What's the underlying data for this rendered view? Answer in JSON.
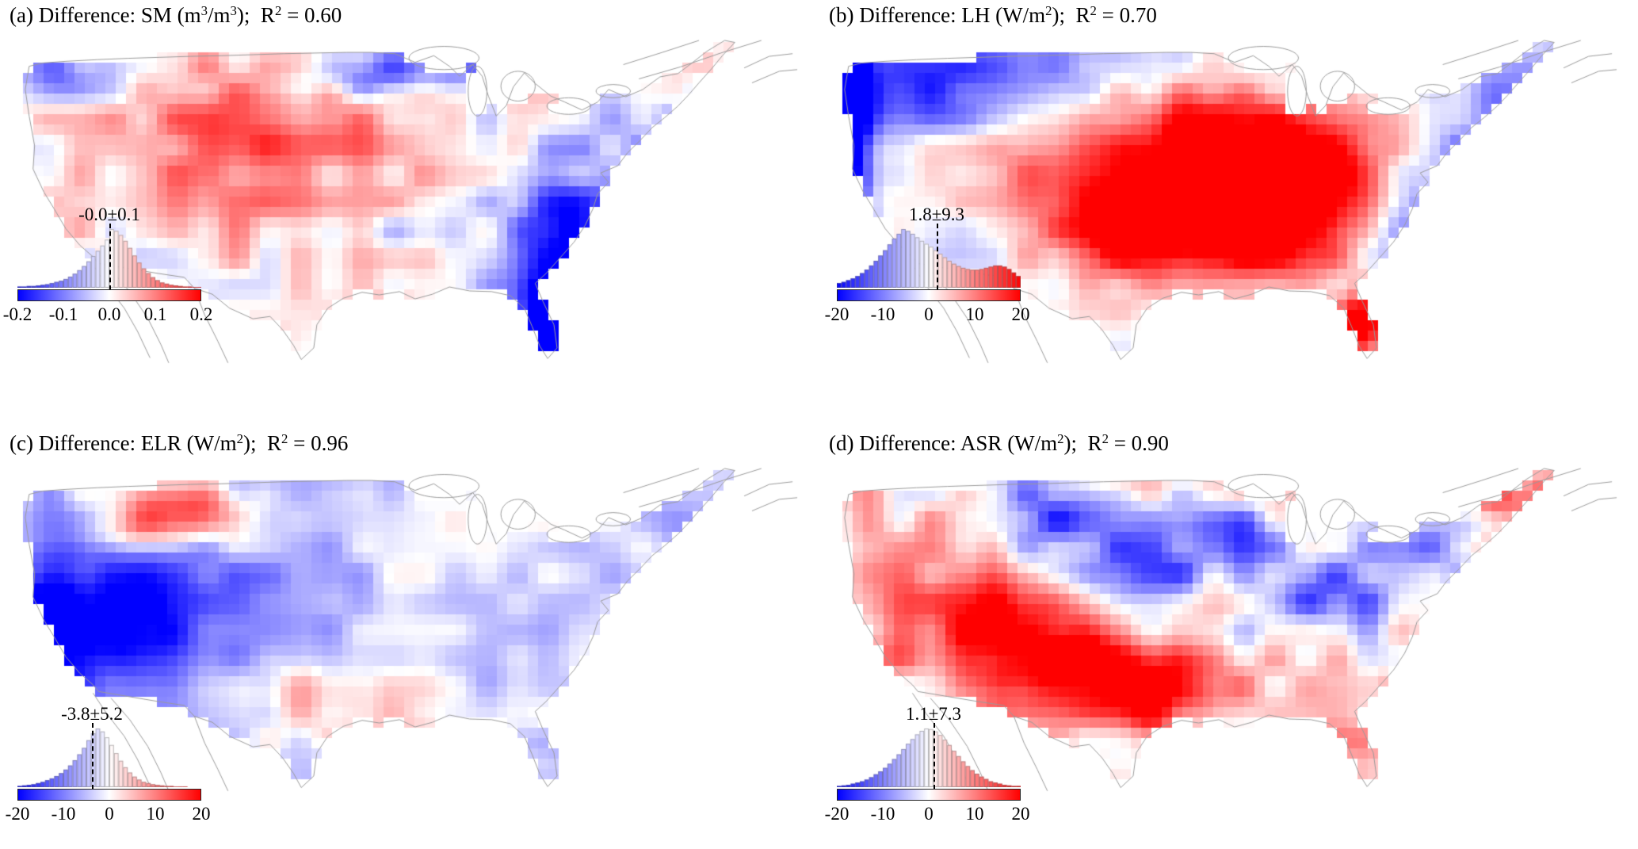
{
  "figure": {
    "background": "#ffffff",
    "colormap": "blue-white-red (bwr)",
    "region": "Contiguous United States gridded difference maps with inset histograms"
  },
  "panels": [
    {
      "id": "a",
      "title_parts": {
        "p1": "(a) Difference: SM (m",
        "s1": "3",
        "p2": "/m",
        "s2": "3",
        "p3": ");  R",
        "s3": "2",
        "p4": " = 0.60"
      },
      "stat": "-0.0±0.1",
      "ticks": [
        "-0.2",
        "-0.1",
        "0.0",
        "0.1",
        "0.2"
      ]
    },
    {
      "id": "b",
      "title_parts": {
        "p1": "(b) Difference: LH (W/m",
        "s1": "2",
        "p2": ");  R",
        "s2": "2",
        "p3": " = 0.70",
        "s3": "",
        "p4": ""
      },
      "stat": "1.8±9.3",
      "ticks": [
        "-20",
        "-10",
        "0",
        "10",
        "20"
      ]
    },
    {
      "id": "c",
      "title_parts": {
        "p1": "(c) Difference: ELR (W/m",
        "s1": "2",
        "p2": ");  R",
        "s2": "2",
        "p3": " = 0.96",
        "s3": "",
        "p4": ""
      },
      "stat": "-3.8±5.2",
      "ticks": [
        "-20",
        "-10",
        "0",
        "10",
        "20"
      ]
    },
    {
      "id": "d",
      "title_parts": {
        "p1": "(d) Difference: ASR (W/m",
        "s1": "2",
        "p2": ");  R",
        "s2": "2",
        "p3": " = 0.90",
        "s3": "",
        "p4": ""
      },
      "stat": "1.1±7.3",
      "ticks": [
        "-20",
        "-10",
        "0",
        "10",
        "20"
      ]
    }
  ],
  "chart_data": [
    {
      "type": "heatmap",
      "panel": "a",
      "title": "(a) Difference: SM (m3/m3); R2 = 0.60",
      "variable": "SM",
      "units": "m3/m3",
      "r_squared": 0.6,
      "mean": -0.0,
      "std": 0.1,
      "stat_label": "-0.0±0.1",
      "colorbar": {
        "vmin": -0.2,
        "vmax": 0.2,
        "ticks": [
          -0.2,
          -0.1,
          0.0,
          0.1,
          0.2
        ],
        "colormap": "blue-white-red"
      },
      "region": "Contiguous United States",
      "notes": "Near-zero mean difference; light red over central/western plains, dark blue cluster on northern border, strong blue band over Florida and southeast coast.",
      "histogram": {
        "range": [
          -0.2,
          0.2
        ],
        "bin_width": 0.01,
        "counts_normalized": [
          0.02,
          0.02,
          0.03,
          0.03,
          0.04,
          0.05,
          0.06,
          0.08,
          0.1,
          0.12,
          0.15,
          0.19,
          0.24,
          0.3,
          0.37,
          0.45,
          0.54,
          0.63,
          0.72,
          0.82,
          1.0,
          0.97,
          0.9,
          0.8,
          0.68,
          0.55,
          0.43,
          0.33,
          0.25,
          0.18,
          0.13,
          0.09,
          0.07,
          0.05,
          0.04,
          0.03,
          0.02,
          0.02,
          0.01,
          0.01
        ]
      }
    },
    {
      "type": "heatmap",
      "panel": "b",
      "title": "(b) Difference: LH (W/m2); R2 = 0.70",
      "variable": "LH",
      "units": "W/m2",
      "r_squared": 0.7,
      "mean": 1.8,
      "std": 9.3,
      "stat_label": "1.8±9.3",
      "colorbar": {
        "vmin": -20,
        "vmax": 20,
        "ticks": [
          -20,
          -10,
          0,
          10,
          20
        ],
        "colormap": "blue-white-red"
      },
      "region": "Contiguous United States",
      "notes": "Large strong-red anomaly over the central/southern Great Plains, blue strip along Pacific coast, light blue over east and northwest, red spot over Florida.",
      "histogram": {
        "range": [
          -20,
          20
        ],
        "bin_width": 1,
        "counts_normalized": [
          0.08,
          0.1,
          0.13,
          0.16,
          0.2,
          0.25,
          0.31,
          0.38,
          0.46,
          0.55,
          0.64,
          0.74,
          0.84,
          0.92,
          1.0,
          0.97,
          0.92,
          0.86,
          0.8,
          0.75,
          0.7,
          0.64,
          0.58,
          0.52,
          0.46,
          0.41,
          0.37,
          0.34,
          0.32,
          0.31,
          0.31,
          0.32,
          0.34,
          0.36,
          0.38,
          0.38,
          0.36,
          0.32,
          0.26,
          0.2
        ]
      }
    },
    {
      "type": "heatmap",
      "panel": "c",
      "title": "(c) Difference: ELR (W/m2); R2 = 0.96",
      "variable": "ELR",
      "units": "W/m2",
      "r_squared": 0.96,
      "mean": -3.8,
      "std": 5.2,
      "stat_label": "-3.8±5.2",
      "colorbar": {
        "vmin": -20,
        "vmax": 20,
        "ticks": [
          -20,
          -10,
          0,
          10,
          20
        ],
        "colormap": "blue-white-red"
      },
      "region": "Contiguous United States",
      "notes": "Predominantly light blue nationwide; dark blue patches over the mountain west and California, red blob over the northwest interior, light red along southern Texas.",
      "histogram": {
        "range": [
          -20,
          20
        ],
        "bin_width": 1,
        "counts_normalized": [
          0.02,
          0.03,
          0.04,
          0.05,
          0.07,
          0.09,
          0.12,
          0.15,
          0.19,
          0.24,
          0.3,
          0.37,
          0.46,
          0.56,
          0.67,
          0.8,
          0.92,
          1.0,
          0.95,
          0.85,
          0.72,
          0.58,
          0.45,
          0.34,
          0.25,
          0.18,
          0.13,
          0.09,
          0.07,
          0.05,
          0.04,
          0.03,
          0.02,
          0.02,
          0.01,
          0.01,
          0.01,
          0.0,
          0.0,
          0.0
        ]
      }
    },
    {
      "type": "heatmap",
      "panel": "d",
      "title": "(d) Difference: ASR (W/m2); R2 = 0.90",
      "variable": "ASR",
      "units": "W/m2",
      "r_squared": 0.9,
      "mean": 1.1,
      "std": 7.3,
      "stat_label": "1.1±7.3",
      "colorbar": {
        "vmin": -20,
        "vmax": 20,
        "ticks": [
          -20,
          -10,
          0,
          10,
          20
        ],
        "colormap": "blue-white-red"
      },
      "region": "Contiguous United States",
      "notes": "Speckled pattern: strong red patches over the southwest and Texas, dark blue over the north-central US, red band along the Great Lakes and Northeast, light red over the east.",
      "histogram": {
        "range": [
          -20,
          20
        ],
        "bin_width": 1,
        "counts_normalized": [
          0.02,
          0.03,
          0.04,
          0.06,
          0.08,
          0.1,
          0.13,
          0.17,
          0.22,
          0.27,
          0.33,
          0.4,
          0.48,
          0.56,
          0.65,
          0.74,
          0.82,
          0.9,
          0.96,
          1.0,
          0.99,
          0.95,
          0.89,
          0.81,
          0.72,
          0.62,
          0.53,
          0.44,
          0.36,
          0.29,
          0.23,
          0.18,
          0.14,
          0.1,
          0.08,
          0.06,
          0.04,
          0.03,
          0.02,
          0.02
        ]
      }
    }
  ]
}
